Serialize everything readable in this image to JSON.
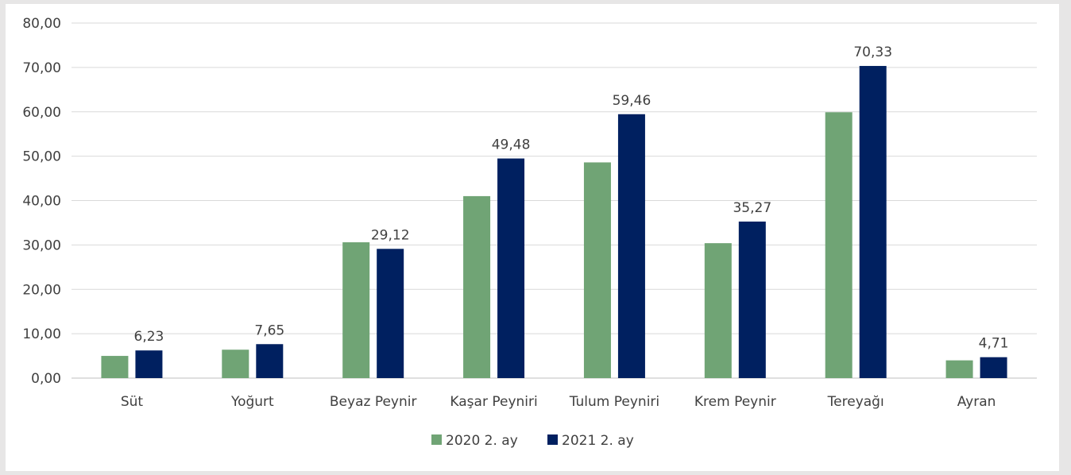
{
  "chart_data": {
    "type": "bar",
    "categories": [
      "Süt",
      "Yoğurt",
      "Beyaz Peynir",
      "Kaşar Peyniri",
      "Tulum Peyniri",
      "Krem Peynir",
      "Tereyağı",
      "Ayran"
    ],
    "series": [
      {
        "name": "2020 2. ay",
        "color": "#70a475",
        "values": [
          5.0,
          6.4,
          30.6,
          41.0,
          48.6,
          30.4,
          59.9,
          4.0
        ],
        "labels": [
          "",
          "",
          "",
          "",
          "",
          "",
          "",
          ""
        ]
      },
      {
        "name": "2021 2. ay",
        "color": "#002060",
        "values": [
          6.23,
          7.65,
          29.12,
          49.48,
          59.46,
          35.27,
          70.33,
          4.71
        ],
        "labels": [
          "6,23",
          "7,65",
          "29,12",
          "49,48",
          "59,46",
          "35,27",
          "70,33",
          "4,71"
        ]
      }
    ],
    "ylim": [
      0,
      80
    ],
    "yticks": [
      0,
      10,
      20,
      30,
      40,
      50,
      60,
      70,
      80
    ],
    "ytick_labels": [
      "0,00",
      "10,00",
      "20,00",
      "30,00",
      "40,00",
      "50,00",
      "60,00",
      "70,00",
      "80,00"
    ],
    "grid": true,
    "legend_position": "bottom",
    "title": "",
    "xlabel": "",
    "ylabel": ""
  }
}
